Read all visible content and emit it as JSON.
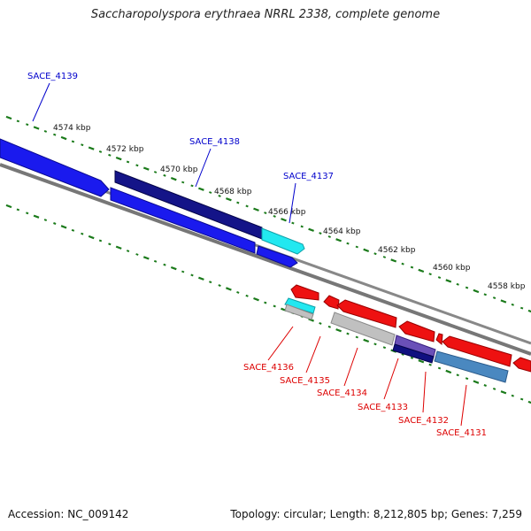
{
  "title": "Saccharopolyspora erythraea NRRL 2338, complete genome",
  "footer": {
    "accession": "Accession: NC_009142",
    "summary": "Topology: circular; Length: 8,212,805 bp; Genes: 7,259"
  },
  "colors": {
    "forward_label": "#0000cc",
    "reverse_label": "#dd0000",
    "tick": "#1a7a1a",
    "backbone": "#808080",
    "blue": "#1a1aee",
    "navy": "#101080",
    "cyan": "#22e8f0",
    "red": "#ee1111",
    "gray": "#c0c0c0",
    "purple": "#6a50b8",
    "steelblue": "#4a88c0"
  },
  "scale": {
    "unit": "kbp",
    "ticks": [
      {
        "pos": 4574,
        "label": "4574 kbp"
      },
      {
        "pos": 4572,
        "label": "4572 kbp"
      },
      {
        "pos": 4570,
        "label": "4570 kbp"
      },
      {
        "pos": 4568,
        "label": "4568 kbp"
      },
      {
        "pos": 4566,
        "label": "4566 kbp"
      },
      {
        "pos": 4564,
        "label": "4564 kbp"
      },
      {
        "pos": 4562,
        "label": "4562 kbp"
      },
      {
        "pos": 4560,
        "label": "4560 kbp"
      },
      {
        "pos": 4558,
        "label": "4558 kbp"
      }
    ]
  },
  "genes_forward": [
    {
      "label": "SACE_4139",
      "color": "#0000cc"
    },
    {
      "label": "SACE_4138",
      "color": "#0000cc"
    },
    {
      "label": "SACE_4137",
      "color": "#0000cc"
    }
  ],
  "genes_reverse": [
    {
      "label": "SACE_4136",
      "color": "#dd0000"
    },
    {
      "label": "SACE_4135",
      "color": "#dd0000"
    },
    {
      "label": "SACE_4134",
      "color": "#dd0000"
    },
    {
      "label": "SACE_4133",
      "color": "#dd0000"
    },
    {
      "label": "SACE_4132",
      "color": "#dd0000"
    },
    {
      "label": "SACE_4131",
      "color": "#dd0000"
    }
  ]
}
